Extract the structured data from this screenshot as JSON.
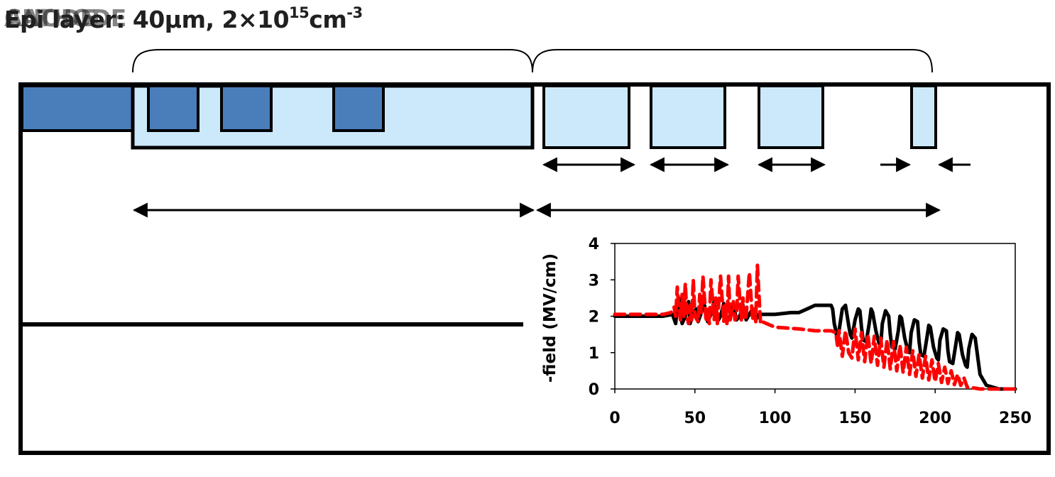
{
  "header": {
    "overlapped_words": [
      "ANODE",
      "CATHODE",
      "Epi layer"
    ],
    "spec_prefix": ": 40µm, 2×10",
    "spec_exponent1": "15",
    "spec_unit": "cm",
    "spec_exponent2": "-3"
  },
  "colors": {
    "p_plus_region": "#4a7ebb",
    "p_minus_region": "#cce9fb",
    "outline": "#000000",
    "series_black": "#000000",
    "series_red": "#ff0000"
  },
  "chart_data": {
    "type": "line",
    "xlabel": "",
    "ylabel": "-field (MV/cm)",
    "xlim": [
      0,
      250
    ],
    "ylim": [
      0,
      4
    ],
    "x_ticks": [
      "0",
      "50",
      "100",
      "150",
      "200",
      "250"
    ],
    "y_ticks": [
      "0",
      "1",
      "2",
      "3",
      "4"
    ],
    "grid": false,
    "series": [
      {
        "color": "#000000",
        "dashed": false,
        "x": [
          0,
          30,
          36,
          38,
          39,
          40,
          42,
          44,
          46,
          47,
          49,
          51,
          52,
          54,
          56,
          58,
          60,
          62,
          64,
          66,
          68,
          70,
          72,
          74,
          76,
          78,
          80,
          82,
          84,
          86,
          88,
          90,
          92,
          100,
          110,
          115,
          120,
          125,
          130,
          135,
          136,
          137,
          138,
          139,
          140,
          142,
          144,
          146,
          147,
          148,
          150,
          152,
          153,
          154,
          155,
          157,
          159,
          160,
          161,
          163,
          165,
          166,
          167,
          169,
          171,
          172,
          173,
          175,
          177,
          178,
          179,
          181,
          183,
          184,
          185,
          187,
          189,
          190,
          191,
          193,
          195,
          196,
          197,
          199,
          201,
          202,
          203,
          205,
          207,
          208,
          209,
          211,
          213,
          214,
          215,
          217,
          219,
          220,
          221,
          223,
          225,
          228,
          232,
          240,
          250
        ],
        "y": [
          2.0,
          2.0,
          2.05,
          1.8,
          2.3,
          2.5,
          1.8,
          2.0,
          2.4,
          1.8,
          2.1,
          2.2,
          1.85,
          2.1,
          2.3,
          1.85,
          2.05,
          2.4,
          1.85,
          2.0,
          2.35,
          1.85,
          2.0,
          2.3,
          1.9,
          2.0,
          2.3,
          1.9,
          2.05,
          2.2,
          1.9,
          2.05,
          2.05,
          2.05,
          2.1,
          2.1,
          2.2,
          2.3,
          2.3,
          2.3,
          2.2,
          1.8,
          1.6,
          1.3,
          1.6,
          2.2,
          2.3,
          1.75,
          1.5,
          1.4,
          1.9,
          2.2,
          2.15,
          1.7,
          1.35,
          1.3,
          1.85,
          2.2,
          2.1,
          1.6,
          1.25,
          1.2,
          1.8,
          2.15,
          2.0,
          1.5,
          1.15,
          1.1,
          1.6,
          2.0,
          1.95,
          1.4,
          1.05,
          1.0,
          1.55,
          1.9,
          1.85,
          1.3,
          0.95,
          0.9,
          1.45,
          1.75,
          1.7,
          1.15,
          0.85,
          0.8,
          1.35,
          1.65,
          1.6,
          1.05,
          0.75,
          0.7,
          1.25,
          1.55,
          1.5,
          0.95,
          0.65,
          0.6,
          1.1,
          1.5,
          1.4,
          0.4,
          0.1,
          0.0,
          0.0
        ]
      },
      {
        "color": "#ff0000",
        "dashed": true,
        "x": [
          0,
          30,
          35,
          37,
          38,
          39,
          40,
          41,
          42,
          43,
          44,
          45,
          46,
          47,
          48,
          49,
          50,
          52,
          53,
          54,
          55,
          57,
          58,
          59,
          60,
          62,
          63,
          64,
          66,
          68,
          69,
          70,
          71,
          72,
          74,
          75,
          76,
          77,
          79,
          80,
          81,
          82,
          84,
          86,
          87,
          88,
          89,
          90,
          91,
          92,
          100,
          115,
          125,
          130,
          135,
          138,
          139,
          140,
          142,
          144,
          146,
          148,
          150,
          152,
          154,
          156,
          158,
          160,
          162,
          164,
          166,
          168,
          170,
          172,
          174,
          176,
          178,
          180,
          182,
          184,
          186,
          188,
          190,
          192,
          194,
          196,
          198,
          200,
          202,
          204,
          206,
          208,
          210,
          212,
          214,
          216,
          218,
          220,
          224,
          228,
          232,
          240,
          250
        ],
        "y": [
          2.05,
          2.05,
          2.1,
          2.25,
          2.0,
          2.8,
          2.2,
          1.9,
          2.6,
          2.0,
          2.9,
          2.0,
          1.8,
          2.3,
          1.9,
          3.0,
          2.0,
          1.85,
          2.6,
          2.1,
          3.1,
          1.85,
          2.2,
          1.8,
          3.0,
          1.9,
          2.5,
          1.8,
          3.1,
          1.85,
          2.3,
          1.8,
          3.1,
          1.9,
          2.4,
          1.9,
          2.0,
          3.1,
          1.9,
          2.5,
          1.9,
          2.0,
          3.2,
          1.9,
          2.2,
          1.85,
          3.4,
          2.6,
          1.8,
          1.85,
          1.7,
          1.65,
          1.6,
          1.6,
          1.6,
          1.55,
          1.2,
          1.6,
          0.9,
          1.6,
          1.0,
          0.85,
          1.65,
          0.8,
          1.55,
          0.75,
          1.5,
          0.7,
          1.45,
          0.65,
          1.4,
          0.6,
          1.35,
          0.55,
          1.3,
          0.5,
          1.2,
          0.45,
          1.15,
          0.4,
          1.05,
          0.35,
          0.95,
          0.3,
          0.9,
          0.25,
          0.8,
          0.2,
          0.7,
          0.18,
          0.6,
          0.15,
          0.5,
          0.12,
          0.4,
          0.1,
          0.3,
          0.05,
          0.03,
          0.0,
          0.0,
          0.0,
          0.0
        ]
      }
    ]
  }
}
